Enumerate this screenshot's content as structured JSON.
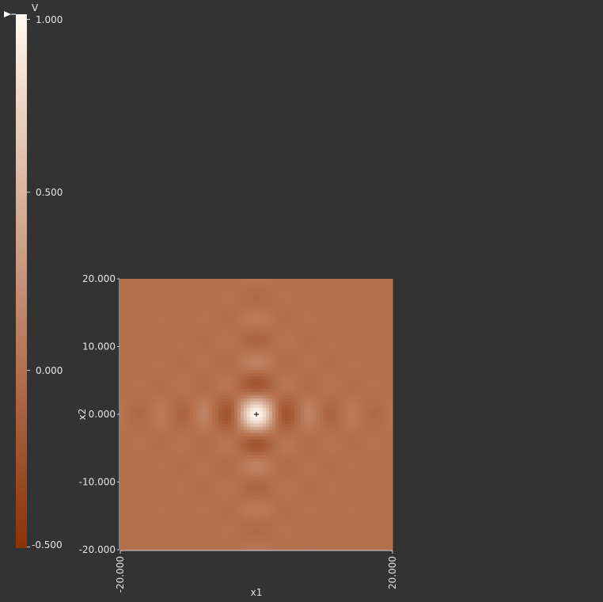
{
  "colorbar": {
    "label": "V",
    "ticks": [
      {
        "value": 1.0,
        "label": "1.000"
      },
      {
        "value": 0.5,
        "label": "0.500"
      },
      {
        "value": 0.0,
        "label": "0.000"
      },
      {
        "value": -0.5,
        "label": "-0.500"
      }
    ],
    "range": [
      -0.5,
      1.0
    ],
    "colors": {
      "low": "#8a3306",
      "mid": "#b4704d",
      "high": "#fff8f0"
    }
  },
  "chart_data": {
    "type": "heatmap",
    "function": "sinc(x1)*sinc(x2)",
    "xlabel": "x1",
    "ylabel": "x2",
    "xlim": [
      -20,
      20
    ],
    "ylim": [
      -20,
      20
    ],
    "x_ticks": [
      "-20.000",
      "20.000"
    ],
    "y_ticks": [
      "20.000",
      "10.000",
      "0.000",
      "-10.000",
      "-20.000"
    ],
    "value_label": "V",
    "value_range": [
      -0.5,
      1.0
    ],
    "peak": {
      "x1": 0,
      "x2": 0,
      "value": 1.0,
      "marker": "+"
    }
  }
}
